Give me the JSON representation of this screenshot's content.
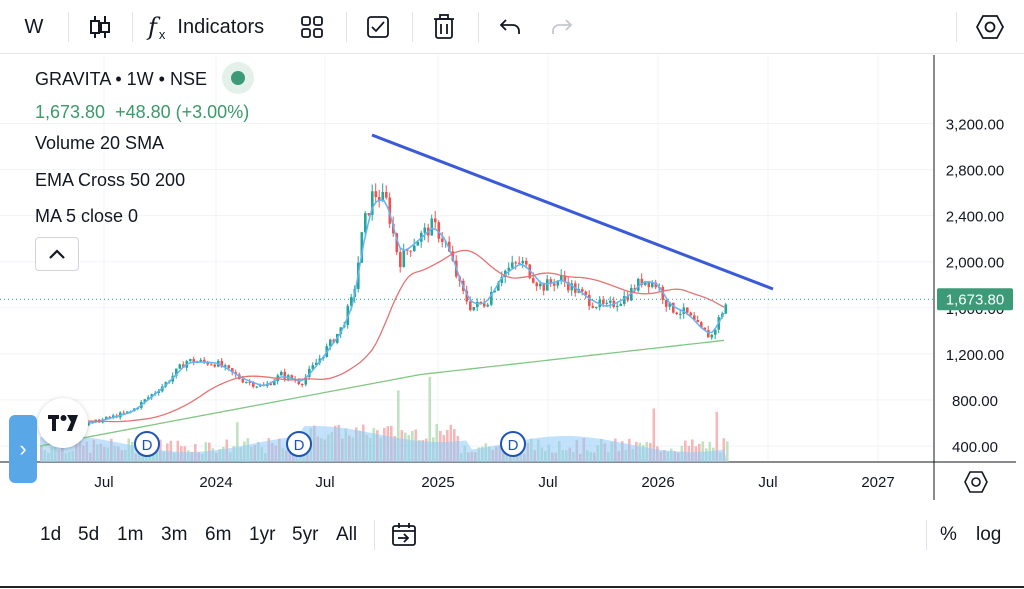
{
  "toolbar": {
    "interval": "W",
    "indicators_label": "Indicators",
    "icons": [
      "candles-icon",
      "fx-icon",
      "templates-icon",
      "checkbox-icon",
      "trash-icon",
      "undo-icon",
      "redo-icon",
      "settings-hexagon-icon"
    ]
  },
  "legend": {
    "symbol": "GRAVITA • 1W • NSE",
    "price": "1,673.80",
    "change": "+48.80 (+3.00%)",
    "indicators": [
      "Volume 20 SMA",
      "EMA Cross 50 200",
      "MA 5 close 0"
    ]
  },
  "price_axis": {
    "labels": [
      "3,200.00",
      "2,800.00",
      "2,400.00",
      "2,000.00",
      "1,600.00",
      "1,200.00",
      "800.00",
      "400.00"
    ],
    "current_price_label": "1,673.80"
  },
  "time_axis": {
    "labels": [
      "Jul",
      "2024",
      "Jul",
      "2025",
      "Jul",
      "2026",
      "Jul",
      "2027"
    ]
  },
  "dividend_markers": [
    "D",
    "D",
    "D"
  ],
  "bottom": {
    "ranges": [
      "1d",
      "5d",
      "1m",
      "3m",
      "6m",
      "1yr",
      "5yr",
      "All"
    ],
    "percent_label": "%",
    "log_label": "log"
  },
  "colors": {
    "up": "#26a69a",
    "down": "#ef5350",
    "trendline": "#3a5ad9",
    "ema50": "#e57373",
    "ema200": "#81c784",
    "ma5": "#64b5f6",
    "volume_sma": "#90caf9",
    "price_badge": "#3c9a78"
  }
}
